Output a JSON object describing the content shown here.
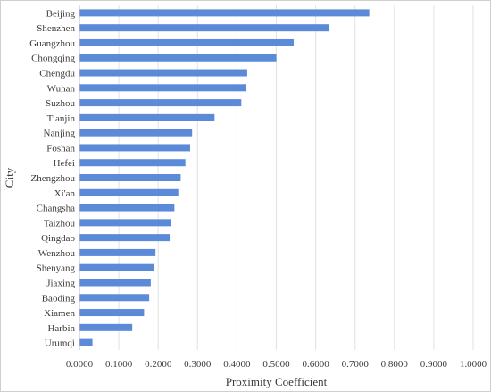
{
  "chart_data": {
    "type": "bar",
    "orientation": "horizontal",
    "xlabel": "Proximity Coefficient",
    "ylabel": "City",
    "xlim": [
      0,
      1
    ],
    "x_ticks": [
      "0.0000",
      "0.1000",
      "0.2000",
      "0.3000",
      "0.4000",
      "0.5000",
      "0.6000",
      "0.7000",
      "0.8000",
      "0.9000",
      "1.0000"
    ],
    "grid": "vertical",
    "bar_color": "#5b8ad8",
    "categories": [
      "Beijing",
      "Shenzhen",
      "Guangzhou",
      "Chongqing",
      "Chengdu",
      "Wuhan",
      "Suzhou",
      "Tianjin",
      "Nanjing",
      "Foshan",
      "Hefei",
      "Zhengzhou",
      "Xi'an",
      "Changsha",
      "Taizhou",
      "Qingdao",
      "Wenzhou",
      "Shenyang",
      "Jiaxing",
      "Baoding",
      "Xiamen",
      "Harbin",
      "Urumqi"
    ],
    "values": [
      0.735,
      0.632,
      0.543,
      0.499,
      0.425,
      0.423,
      0.41,
      0.342,
      0.285,
      0.28,
      0.268,
      0.256,
      0.25,
      0.24,
      0.232,
      0.228,
      0.192,
      0.188,
      0.18,
      0.176,
      0.163,
      0.133,
      0.032
    ]
  }
}
